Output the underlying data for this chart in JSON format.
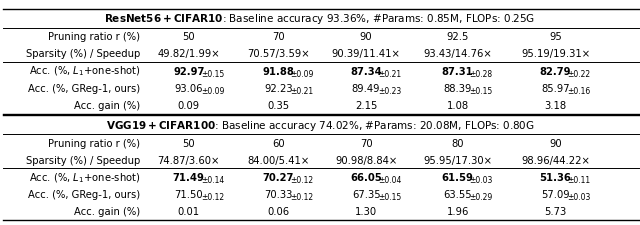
{
  "figsize": [
    6.4,
    2.26
  ],
  "dpi": 100,
  "bg_color": "#ffffff",
  "table1_header_bold": "ResNet56 + CIFAR10",
  "table1_header_rest": ": Baseline accuracy 93.36%, #Params: 0.85M, FLOPs: 0.25G",
  "table2_header_bold": "VGG19 + CIFAR100",
  "table2_header_rest": ": Baseline accuracy 74.02%, #Params: 20.08M, FLOPs: 0.80G",
  "table1_rows": [
    [
      "Pruning ratio r (%)",
      "50",
      "70",
      "90",
      "92.5",
      "95"
    ],
    [
      "Sparsity (%) / Speedup",
      "49.82/1.99×",
      "70.57/3.59×",
      "90.39/11.41×",
      "93.43/14.76×",
      "95.19/19.31×"
    ],
    [
      "Acc. (%, L1+one-shot)",
      "92.97",
      "0.15",
      "91.88",
      "0.09",
      "87.34",
      "0.21",
      "87.31",
      "0.28",
      "82.79",
      "0.22"
    ],
    [
      "Acc. (%, GReg-1, ours)",
      "93.06",
      "0.09",
      "92.23",
      "0.21",
      "89.49",
      "0.23",
      "88.39",
      "0.15",
      "85.97",
      "0.16"
    ],
    [
      "Acc. gain (%)",
      "0.09",
      "0.35",
      "2.15",
      "1.08",
      "3.18"
    ]
  ],
  "table2_rows": [
    [
      "Pruning ratio r (%)",
      "50",
      "60",
      "70",
      "80",
      "90"
    ],
    [
      "Sparsity (%) / Speedup",
      "74.87/3.60×",
      "84.00/5.41×",
      "90.98/8.84×",
      "95.95/17.30×",
      "98.96/44.22×"
    ],
    [
      "Acc. (%, L1+one-shot)",
      "71.49",
      "0.14",
      "70.27",
      "0.12",
      "66.05",
      "0.04",
      "61.59",
      "0.03",
      "51.36",
      "0.11"
    ],
    [
      "Acc. (%, GReg-1, ours)",
      "71.50",
      "0.12",
      "70.33",
      "0.12",
      "67.35",
      "0.15",
      "63.55",
      "0.29",
      "57.09",
      "0.03"
    ],
    [
      "Acc. gain (%)",
      "0.01",
      "0.06",
      "1.30",
      "1.96",
      "5.73"
    ]
  ],
  "fs": 7.2,
  "fs_sub": 5.5,
  "fs_header": 7.5
}
